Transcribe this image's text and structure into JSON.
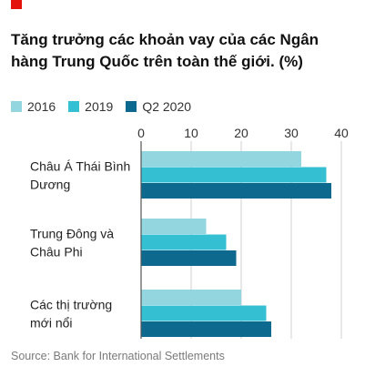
{
  "chart_data": {
    "type": "bar",
    "orientation": "horizontal",
    "title": "Tăng trưởng các khoản vay của các Ngân hàng Trung Quốc trên toàn thế giới. (%)",
    "categories": [
      [
        "Châu Á Thái Bình",
        "Dương"
      ],
      [
        "Trung Đông và",
        "Châu Phi"
      ],
      [
        "Các thị trường",
        "mới nổi"
      ]
    ],
    "series": [
      {
        "name": "2016",
        "color": "#93d6e0",
        "values": [
          32,
          13,
          20
        ]
      },
      {
        "name": "2019",
        "color": "#35bfd3",
        "values": [
          37,
          17,
          25
        ]
      },
      {
        "name": "Q2 2020",
        "color": "#0d6a8e",
        "values": [
          38,
          19,
          26
        ]
      }
    ],
    "xlim": [
      0,
      40
    ],
    "xticks": [
      0,
      10,
      20,
      30,
      40
    ],
    "grid": true,
    "legend_position": "top"
  },
  "source": "Source: Bank for International Settlements"
}
